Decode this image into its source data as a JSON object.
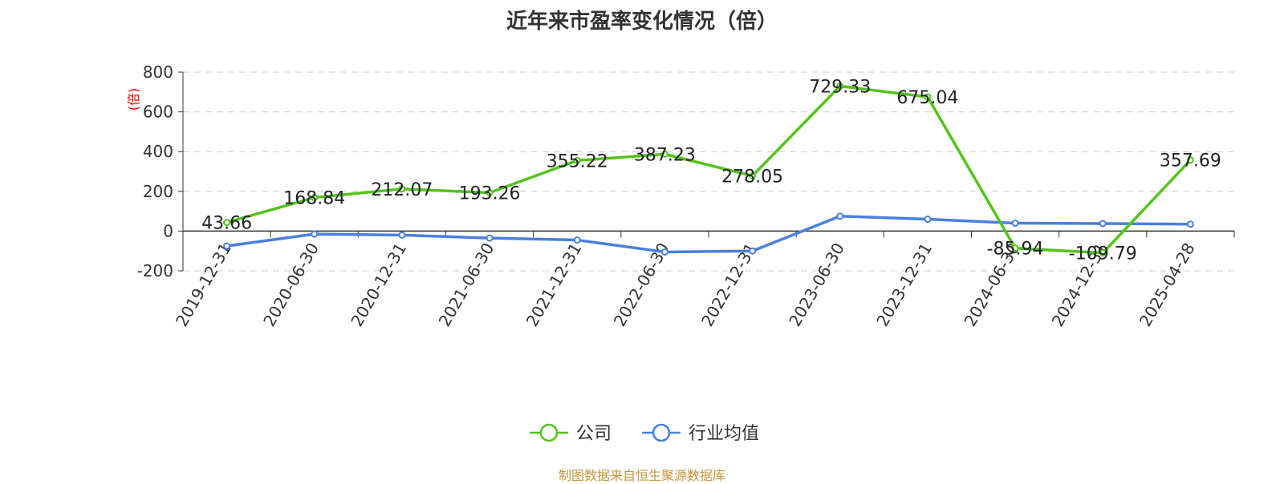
{
  "title": "近年来市盈率变化情况（倍）",
  "source": "制图数据来自恒生聚源数据库",
  "colors": {
    "company": "#52c41a",
    "industry": "#4a7fde"
  },
  "chart_data": {
    "type": "line",
    "title": "近年来市盈率变化情况（倍）",
    "ylabel": "(倍)",
    "xlabel": "",
    "x": [
      "2019-12-31",
      "2020-06-30",
      "2020-12-31",
      "2021-06-30",
      "2021-12-31",
      "2022-06-30",
      "2022-12-31",
      "2023-06-30",
      "2023-12-31",
      "2024-06-30",
      "2024-12-31",
      "2025-04-28"
    ],
    "ylim": [
      -200,
      800
    ],
    "yticks": [
      -200,
      0,
      200,
      400,
      600,
      800
    ],
    "grid": true,
    "legend_position": "bottom",
    "series": [
      {
        "name": "公司",
        "color": "#52c41a",
        "values": [
          43.66,
          168.84,
          212.07,
          193.26,
          355.22,
          387.23,
          278.05,
          729.33,
          675.04,
          -85.94,
          -109.79,
          357.69
        ],
        "labels": [
          "43.66",
          "168.84",
          "212.07",
          "193.26",
          "355.22",
          "387.23",
          "278.05",
          "729.33",
          "675.04",
          "-85.94",
          "-109.79",
          "357.69"
        ]
      },
      {
        "name": "行业均值",
        "color": "#4a7fde",
        "values": [
          -75,
          -15,
          -20,
          -35,
          -45,
          -105,
          -100,
          75,
          60,
          40,
          38,
          35
        ]
      }
    ]
  }
}
